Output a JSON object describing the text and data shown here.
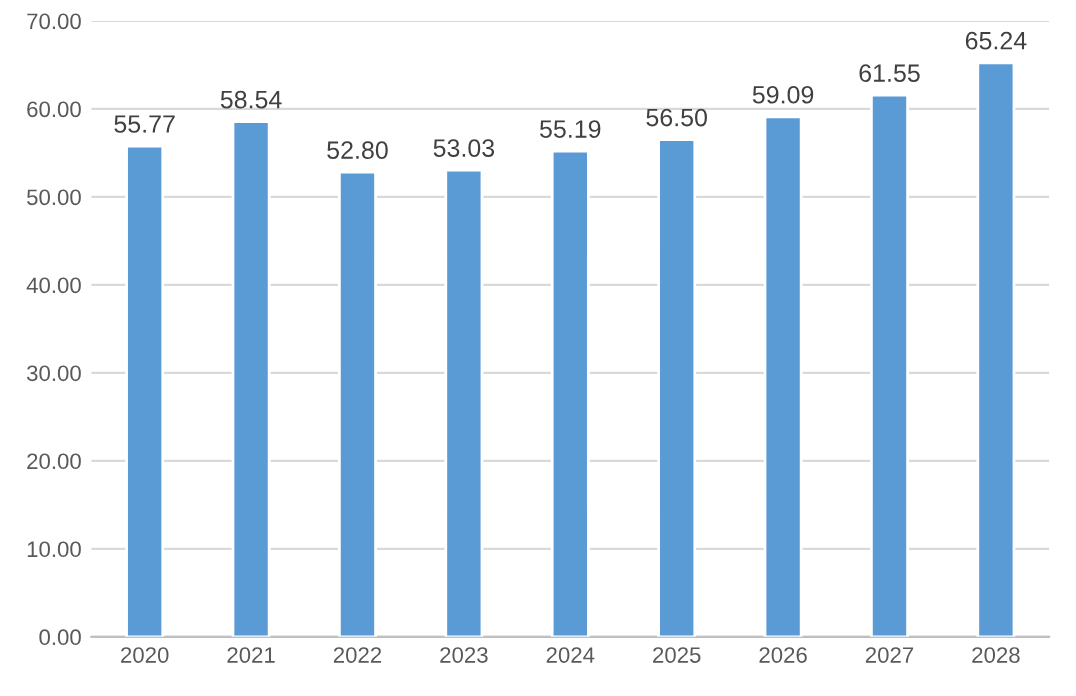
{
  "chart_data": {
    "type": "bar",
    "categories": [
      "2020",
      "2021",
      "2022",
      "2023",
      "2024",
      "2025",
      "2026",
      "2027",
      "2028"
    ],
    "values": [
      55.77,
      58.54,
      52.8,
      53.03,
      55.19,
      56.5,
      59.09,
      61.55,
      65.24
    ],
    "value_labels": [
      "55.77",
      "58.54",
      "52.80",
      "53.03",
      "55.19",
      "56.50",
      "59.09",
      "61.55",
      "65.24"
    ],
    "color": "#5b9bd5",
    "ylim": [
      0,
      70
    ],
    "yticks": [
      {
        "value": 0,
        "label": "0.00"
      },
      {
        "value": 10,
        "label": "10.00"
      },
      {
        "value": 20,
        "label": "20.00"
      },
      {
        "value": 30,
        "label": "30.00"
      },
      {
        "value": 40,
        "label": "40.00"
      },
      {
        "value": 50,
        "label": "50.00"
      },
      {
        "value": 60,
        "label": "60.00"
      },
      {
        "value": 70,
        "label": "70.00"
      }
    ],
    "grid": "y"
  }
}
